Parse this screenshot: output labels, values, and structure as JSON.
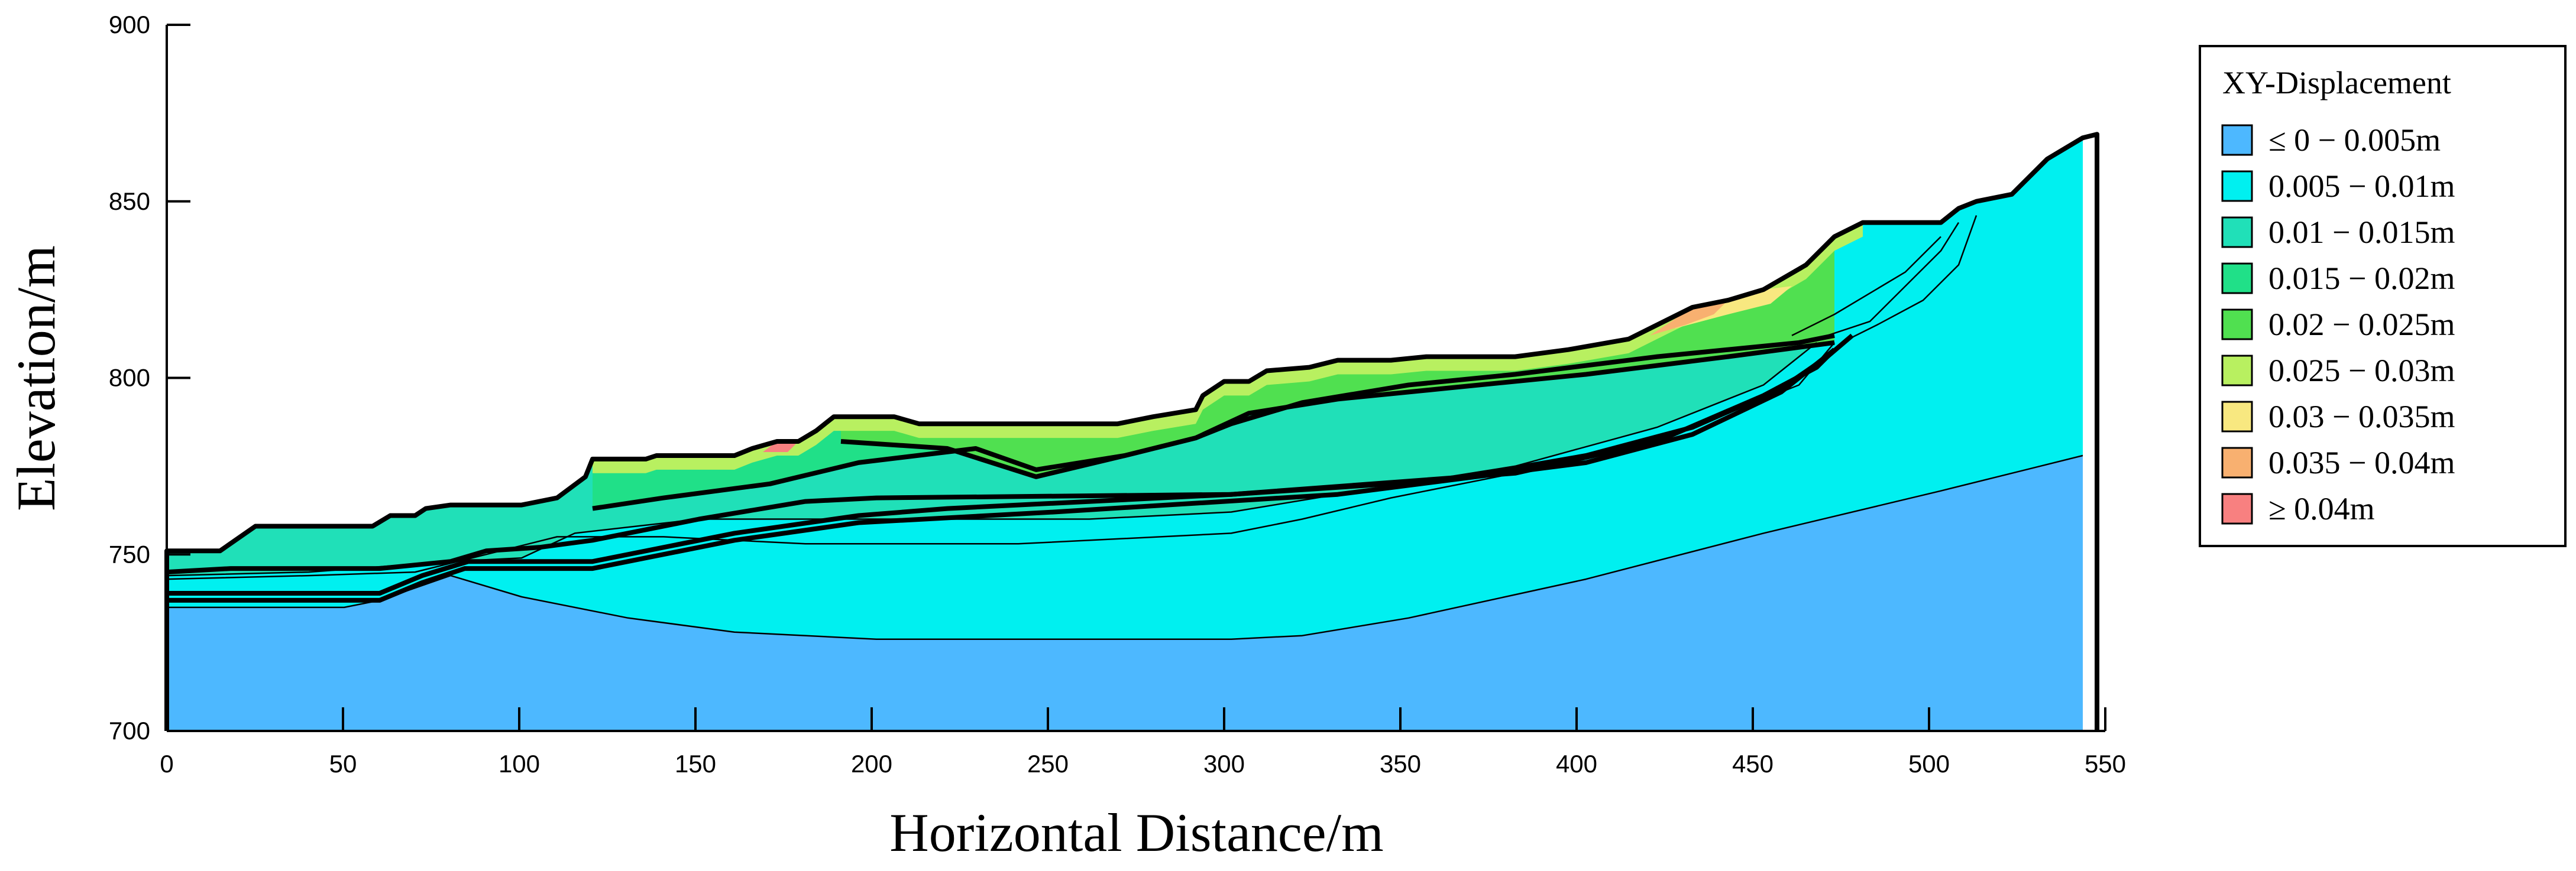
{
  "chart_data": {
    "type": "area",
    "xlabel": "Horizontal Distance/m",
    "ylabel": "Elevation/m",
    "xlim": [
      0,
      550
    ],
    "ylim": [
      700,
      900
    ],
    "xticks": [
      0,
      50,
      100,
      150,
      200,
      250,
      300,
      350,
      400,
      450,
      500,
      550
    ],
    "yticks": [
      700,
      750,
      800,
      850,
      900
    ],
    "legend": {
      "title": "XY-Displacement",
      "placement": "right",
      "entries": [
        {
          "label": "≤ 0 − 0.005m",
          "color": "#4DB8FF"
        },
        {
          "label": "0.005 − 0.01m",
          "color": "#00F0F0"
        },
        {
          "label": "0.01 − 0.015m",
          "color": "#20E0B8"
        },
        {
          "label": "0.015 − 0.02m",
          "color": "#20E088"
        },
        {
          "label": "0.02 − 0.025m",
          "color": "#50E050"
        },
        {
          "label": "0.025 − 0.03m",
          "color": "#B8F060"
        },
        {
          "label": "0.03 − 0.035m",
          "color": "#F8E880"
        },
        {
          "label": "0.035 − 0.04m",
          "color": "#F8B070"
        },
        {
          "label": "≥ 0.04m",
          "color": "#F88080"
        }
      ]
    },
    "ground_surface": [
      [
        0,
        751
      ],
      [
        15,
        751
      ],
      [
        25,
        758
      ],
      [
        58,
        758
      ],
      [
        63,
        761
      ],
      [
        70,
        761
      ],
      [
        73,
        763
      ],
      [
        80,
        764
      ],
      [
        100,
        764
      ],
      [
        110,
        766
      ],
      [
        118,
        772
      ],
      [
        120,
        777
      ],
      [
        135,
        777
      ],
      [
        138,
        778
      ],
      [
        160,
        778
      ],
      [
        165,
        780
      ],
      [
        172,
        782
      ],
      [
        178,
        782
      ],
      [
        183,
        785
      ],
      [
        188,
        789
      ],
      [
        205,
        789
      ],
      [
        212,
        787
      ],
      [
        268,
        787
      ],
      [
        278,
        789
      ],
      [
        290,
        791
      ],
      [
        292,
        795
      ],
      [
        298,
        799
      ],
      [
        305,
        799
      ],
      [
        310,
        802
      ],
      [
        322,
        803
      ],
      [
        330,
        805
      ],
      [
        345,
        805
      ],
      [
        355,
        806
      ],
      [
        380,
        806
      ],
      [
        395,
        808
      ],
      [
        412,
        811
      ],
      [
        430,
        820
      ],
      [
        440,
        822
      ],
      [
        450,
        825
      ],
      [
        462,
        832
      ],
      [
        470,
        840
      ],
      [
        478,
        844
      ],
      [
        500,
        844
      ],
      [
        505,
        848
      ],
      [
        510,
        850
      ],
      [
        520,
        852
      ],
      [
        530,
        862
      ],
      [
        540,
        868
      ],
      [
        544,
        869
      ]
    ],
    "region_boundaries": [
      {
        "points": [
          [
            0,
            745
          ],
          [
            18,
            746
          ],
          [
            45,
            746
          ],
          [
            60,
            746
          ],
          [
            80,
            748
          ],
          [
            90,
            751
          ],
          [
            105,
            752
          ],
          [
            120,
            754
          ],
          [
            150,
            760
          ],
          [
            180,
            765
          ],
          [
            200,
            766
          ],
          [
            300,
            767
          ],
          [
            380,
            773
          ],
          [
            420,
            782
          ],
          [
            450,
            795
          ],
          [
            465,
            803
          ],
          [
            470,
            808
          ]
        ]
      },
      {
        "points": [
          [
            0,
            739
          ],
          [
            60,
            739
          ],
          [
            72,
            744
          ],
          [
            85,
            748
          ],
          [
            120,
            748
          ],
          [
            160,
            756
          ],
          [
            195,
            761
          ],
          [
            220,
            763
          ],
          [
            300,
            767
          ],
          [
            360,
            771
          ],
          [
            400,
            778
          ],
          [
            430,
            786
          ],
          [
            455,
            797
          ],
          [
            468,
            806
          ],
          [
            475,
            812
          ]
        ]
      },
      {
        "points": [
          [
            0,
            737
          ],
          [
            60,
            737
          ],
          [
            72,
            742
          ],
          [
            84,
            746
          ],
          [
            120,
            746
          ],
          [
            160,
            754
          ],
          [
            195,
            759
          ],
          [
            250,
            762
          ],
          [
            330,
            767
          ],
          [
            400,
            776
          ],
          [
            430,
            784
          ],
          [
            455,
            796
          ],
          [
            470,
            808
          ]
        ]
      },
      {
        "points": [
          [
            120,
            763
          ],
          [
            140,
            766
          ],
          [
            170,
            770
          ],
          [
            195,
            776
          ],
          [
            228,
            780
          ],
          [
            245,
            774
          ],
          [
            270,
            778
          ],
          [
            290,
            783
          ],
          [
            300,
            787
          ],
          [
            320,
            793
          ],
          [
            350,
            798
          ],
          [
            380,
            801
          ],
          [
            420,
            806
          ],
          [
            460,
            810
          ],
          [
            470,
            812
          ]
        ]
      },
      {
        "points": [
          [
            190,
            782
          ],
          [
            220,
            780
          ],
          [
            245,
            772
          ],
          [
            270,
            778
          ],
          [
            290,
            783
          ],
          [
            305,
            790
          ],
          [
            330,
            794
          ],
          [
            360,
            797
          ],
          [
            400,
            801
          ],
          [
            440,
            806
          ],
          [
            470,
            810
          ]
        ]
      }
    ],
    "contours": [
      {
        "name": "0.005",
        "points": [
          [
            0,
            735
          ],
          [
            50,
            735
          ],
          [
            60,
            737
          ],
          [
            80,
            744
          ],
          [
            100,
            738
          ],
          [
            130,
            732
          ],
          [
            160,
            728
          ],
          [
            200,
            726
          ],
          [
            250,
            726
          ],
          [
            300,
            726
          ],
          [
            320,
            727
          ],
          [
            350,
            732
          ],
          [
            400,
            743
          ],
          [
            450,
            756
          ],
          [
            500,
            768
          ],
          [
            544,
            779
          ]
        ]
      },
      {
        "points": [
          [
            0,
            743
          ],
          [
            40,
            744
          ],
          [
            70,
            745
          ],
          [
            90,
            750
          ],
          [
            110,
            755
          ],
          [
            140,
            755
          ],
          [
            180,
            753
          ],
          [
            240,
            753
          ],
          [
            300,
            756
          ],
          [
            320,
            760
          ],
          [
            345,
            766
          ],
          [
            380,
            773
          ],
          [
            420,
            782
          ],
          [
            460,
            798
          ],
          [
            470,
            810
          ]
        ]
      },
      {
        "points": [
          [
            0,
            744
          ],
          [
            40,
            745
          ],
          [
            80,
            748
          ],
          [
            100,
            749
          ],
          [
            115,
            756
          ],
          [
            150,
            760
          ],
          [
            200,
            760
          ],
          [
            260,
            760
          ],
          [
            300,
            762
          ],
          [
            330,
            767
          ],
          [
            380,
            775
          ],
          [
            420,
            786
          ],
          [
            450,
            798
          ],
          [
            465,
            810
          ]
        ]
      },
      {
        "points": [
          [
            458,
            812
          ],
          [
            470,
            818
          ],
          [
            490,
            830
          ],
          [
            500,
            840
          ]
        ]
      },
      {
        "points": [
          [
            468,
            812
          ],
          [
            480,
            816
          ],
          [
            488,
            824
          ],
          [
            500,
            836
          ],
          [
            505,
            844
          ]
        ]
      },
      {
        "points": [
          [
            472,
            810
          ],
          [
            482,
            815
          ],
          [
            495,
            822
          ],
          [
            505,
            832
          ],
          [
            510,
            846
          ]
        ]
      }
    ]
  }
}
